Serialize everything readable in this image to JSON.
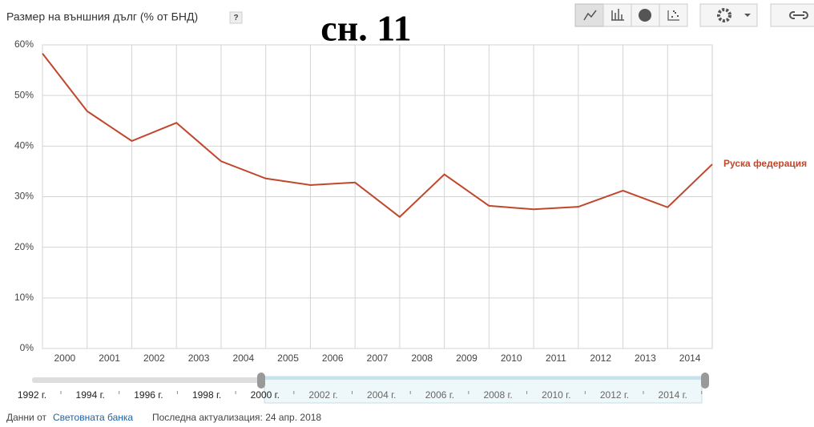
{
  "chart_data": {
    "type": "line",
    "title": "Размер на външния дълг (% от БНД)",
    "help_button": "?",
    "annotation": "сн. 11",
    "x": [
      2000,
      2001,
      2002,
      2003,
      2004,
      2005,
      2006,
      2007,
      2008,
      2009,
      2010,
      2011,
      2012,
      2013,
      2014,
      2015
    ],
    "series": [
      {
        "name": "Руска федерация",
        "color": "#c0472c",
        "values": [
          58.3,
          46.9,
          41.0,
          44.6,
          37.0,
          33.6,
          32.3,
          32.8,
          26.0,
          34.4,
          28.2,
          27.5,
          28.0,
          31.2,
          27.9,
          36.4
        ]
      }
    ],
    "xlim": [
      2000,
      2015
    ],
    "xticks": [
      2000,
      2001,
      2002,
      2003,
      2004,
      2005,
      2006,
      2007,
      2008,
      2009,
      2010,
      2011,
      2012,
      2013,
      2014
    ],
    "ylim": [
      0,
      60
    ],
    "yticks": [
      {
        "value": 0,
        "label": "0%"
      },
      {
        "value": 10,
        "label": "10%"
      },
      {
        "value": 20,
        "label": "20%"
      },
      {
        "value": 30,
        "label": "30%"
      },
      {
        "value": 40,
        "label": "40%"
      },
      {
        "value": 50,
        "label": "50%"
      },
      {
        "value": 60,
        "label": "60%"
      }
    ],
    "grid": true
  },
  "timeline": {
    "labels": [
      "1992 г.",
      "1994 г.",
      "1996 г.",
      "1998 г.",
      "2000 г.",
      "2002 г.",
      "2004 г.",
      "2006 г.",
      "2008 г.",
      "2010 г.",
      "2012 г.",
      "2014 г."
    ]
  },
  "footer": {
    "source_prefix": "Данни от",
    "source": "Световната банка",
    "updated": "Последна актуализация: 24 апр. 2018"
  }
}
